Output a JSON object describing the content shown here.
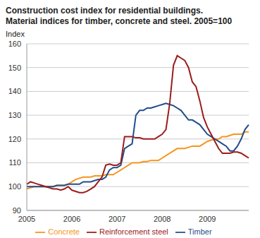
{
  "chart_data": {
    "type": "line",
    "title": "Construction cost index for residential buildings.",
    "subtitle": "Material indices for timber, concrete and steel. 2005=100",
    "y_label": "Index",
    "categories": [
      "2005",
      null,
      null,
      null,
      null,
      null,
      null,
      null,
      null,
      null,
      null,
      null,
      "2006",
      null,
      null,
      null,
      null,
      null,
      null,
      null,
      null,
      null,
      null,
      null,
      "2007",
      null,
      null,
      null,
      null,
      null,
      null,
      null,
      null,
      null,
      null,
      null,
      "2008",
      null,
      null,
      null,
      null,
      null,
      null,
      null,
      null,
      null,
      null,
      null,
      "2009",
      null,
      null,
      null,
      null,
      null,
      null,
      null,
      null,
      null,
      null,
      null
    ],
    "series": [
      {
        "name": "Concrete",
        "color": "#f7941d",
        "values": [
          99,
          99.5,
          100,
          100,
          100,
          100,
          100,
          100,
          100.5,
          100.5,
          100.5,
          101,
          102,
          103,
          103.5,
          104,
          104,
          104,
          104.5,
          104.5,
          104.5,
          105,
          105,
          105,
          106,
          107,
          108,
          109,
          110,
          110,
          110,
          110.5,
          110.5,
          111,
          111,
          111,
          112,
          113,
          114,
          115,
          116,
          116,
          116,
          116.5,
          117,
          117,
          117,
          118,
          119,
          119.5,
          120,
          120,
          121,
          121,
          121.5,
          122,
          122,
          122,
          123,
          123
        ]
      },
      {
        "name": "Timber",
        "color": "#1f4e8c",
        "values": [
          100,
          100,
          100,
          100,
          100,
          100,
          100,
          100,
          100.5,
          100.5,
          100.5,
          101,
          101,
          101,
          101,
          102,
          102,
          102,
          102.5,
          103,
          103,
          104,
          107,
          108,
          108,
          109,
          116,
          117,
          118,
          130,
          132,
          132,
          133,
          133,
          133.5,
          134,
          134.5,
          135,
          134.5,
          134,
          133,
          132,
          130,
          128,
          128,
          127,
          126,
          124,
          122,
          121,
          120,
          119,
          118,
          117,
          115,
          115,
          117,
          120,
          124,
          126
        ]
      },
      {
        "name": "Reinforcement steel",
        "color": "#9b1c1c",
        "values": [
          101,
          102,
          101.5,
          101,
          100.5,
          100,
          99.5,
          99,
          99,
          98.5,
          99,
          100,
          98.5,
          98,
          97.5,
          97.5,
          98,
          99,
          100,
          102,
          104,
          109,
          109.5,
          109,
          109,
          110,
          121,
          121,
          121,
          120.5,
          120.5,
          120,
          120,
          120,
          120,
          121,
          122,
          124,
          135,
          151,
          155,
          154,
          153,
          150,
          144,
          142,
          136,
          129,
          125,
          122,
          119,
          116,
          114,
          114,
          114,
          114.5,
          114.5,
          114,
          113,
          112
        ]
      }
    ],
    "ylim": [
      90,
      160
    ],
    "yticks": [
      90,
      100,
      110,
      120,
      130,
      140,
      150,
      160
    ],
    "grid": true,
    "legend": "bottom",
    "marker": "none",
    "line_style": "solid"
  }
}
